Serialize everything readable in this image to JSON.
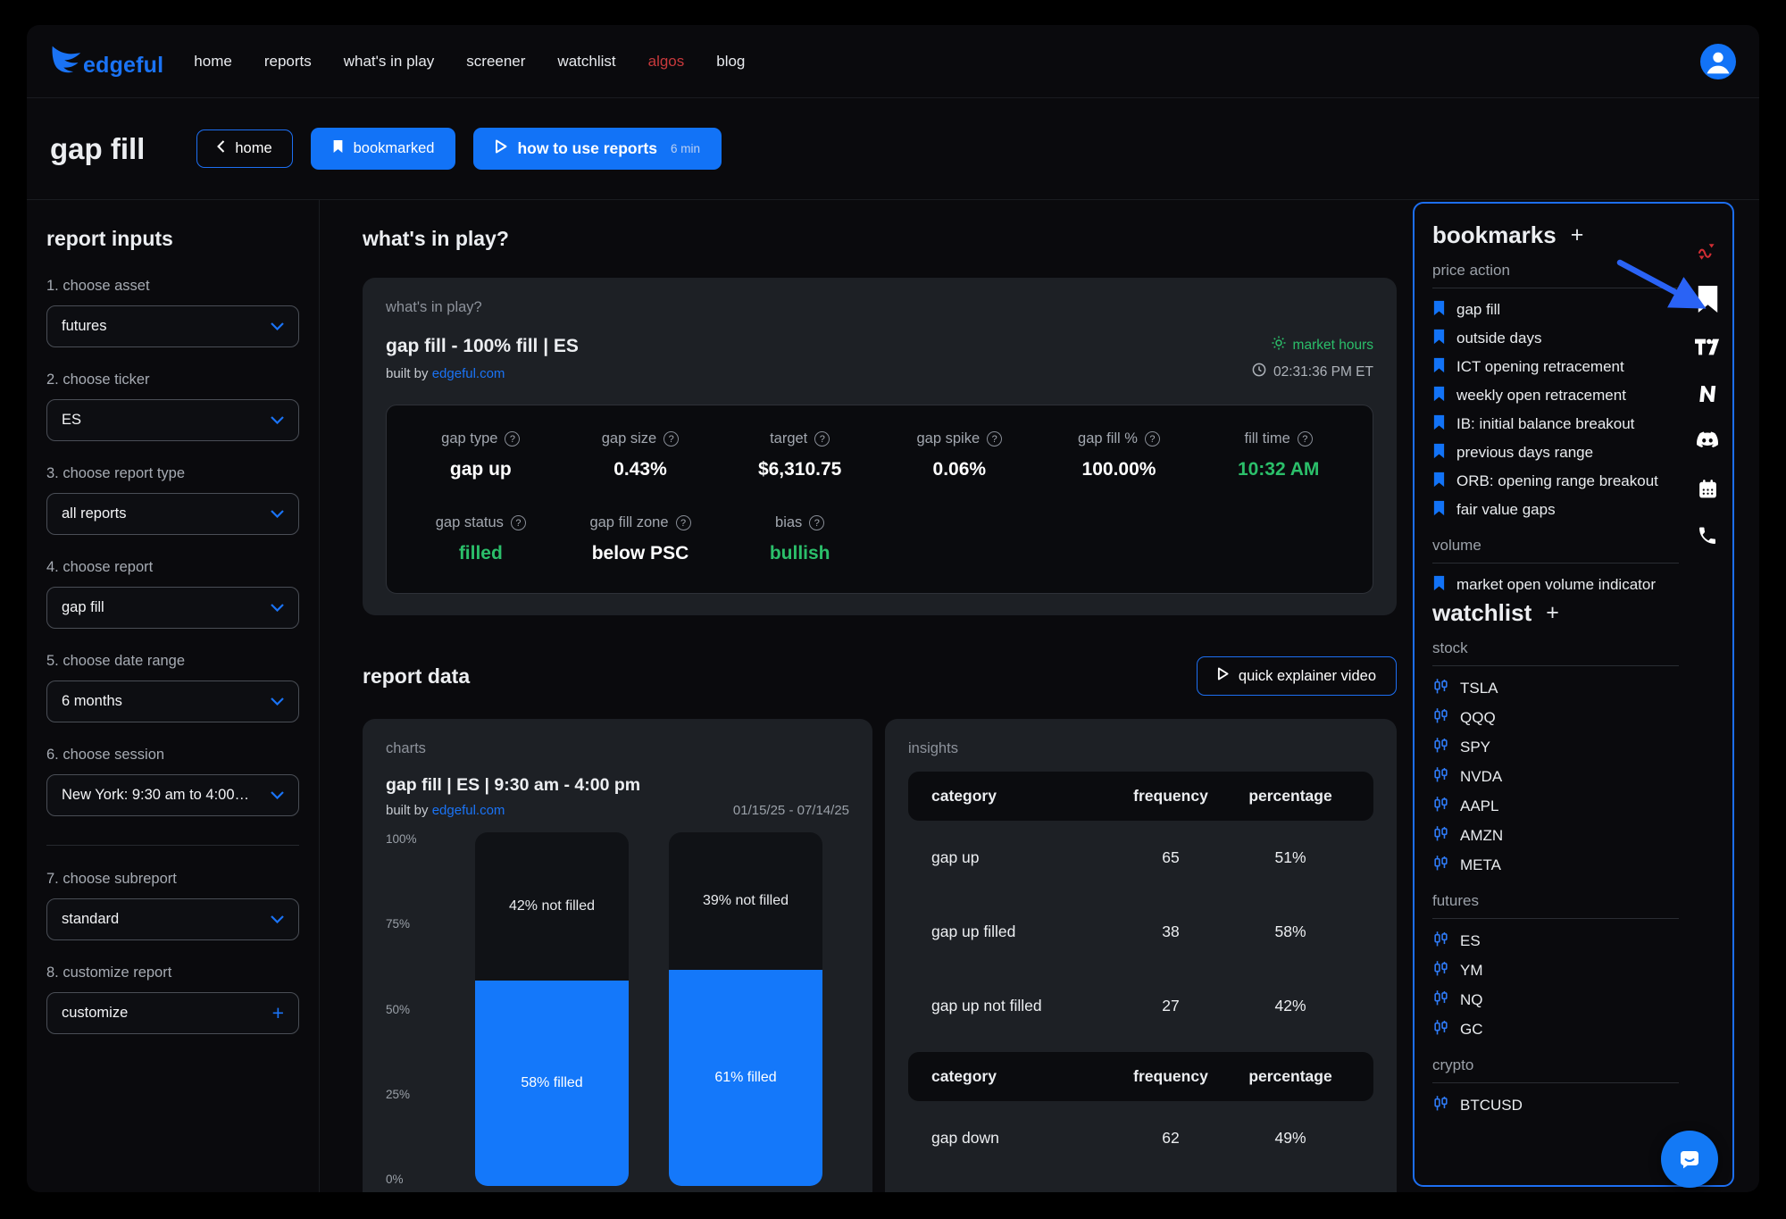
{
  "colors": {
    "accent_blue": "#1273f7",
    "panel_border_blue": "#1d6ff2",
    "positive_green": "#2bbf6a",
    "algos_red": "#c8393c",
    "bar_filled_blue": "#1478fa",
    "bar_not_filled": "#101216",
    "card_bg": "#1d2025",
    "page_bg": "#0a0a0d"
  },
  "icons": {
    "help": "?",
    "plus": "+"
  },
  "nav": {
    "brand": "edgeful",
    "items": [
      "home",
      "reports",
      "what's in play",
      "screener",
      "watchlist",
      "algos",
      "blog"
    ]
  },
  "header": {
    "title": "gap fill",
    "home_button": "home",
    "bookmarked_button": "bookmarked",
    "how_to_button": "how to use reports",
    "how_to_duration": "6 min"
  },
  "report_inputs": {
    "title": "report inputs",
    "fields": [
      {
        "label": "1. choose asset",
        "value": "futures"
      },
      {
        "label": "2. choose ticker",
        "value": "ES"
      },
      {
        "label": "3. choose report type",
        "value": "all reports"
      },
      {
        "label": "4. choose report",
        "value": "gap fill"
      },
      {
        "label": "5. choose date range",
        "value": "6 months"
      },
      {
        "label": "6. choose session",
        "value": "New York: 9:30 am to 4:00…"
      },
      {
        "label": "7. choose subreport",
        "value": "standard"
      },
      {
        "label": "8. customize report",
        "value": "customize"
      }
    ]
  },
  "whats_in_play": {
    "section_title": "what's in play?",
    "card_label": "what's in play?",
    "title": "gap fill - 100% fill | ES",
    "built_by_prefix": "built by",
    "built_by_link": "edgeful.com",
    "market_status": "market hours",
    "time": "02:31:36 PM ET",
    "stats": [
      {
        "label": "gap type",
        "value": "gap up"
      },
      {
        "label": "gap size",
        "value": "0.43%"
      },
      {
        "label": "target",
        "value": "$6,310.75"
      },
      {
        "label": "gap spike",
        "value": "0.06%"
      },
      {
        "label": "gap fill %",
        "value": "100.00%"
      },
      {
        "label": "fill time",
        "value": "10:32 AM"
      },
      {
        "label": "gap status",
        "value": "filled"
      },
      {
        "label": "gap fill zone",
        "value": "below PSC"
      },
      {
        "label": "bias",
        "value": "bullish"
      }
    ]
  },
  "report_data_section": {
    "title": "report data",
    "explainer_button": "quick explainer video"
  },
  "chart_data": {
    "type": "bar",
    "stacked": true,
    "card_label": "charts",
    "title": "gap fill | ES | 9:30 am - 4:00 pm",
    "built_by_prefix": "built by",
    "built_by_link": "edgeful.com",
    "date_range": "01/15/25 - 07/14/25",
    "ylabel": "",
    "ylim": [
      0,
      100
    ],
    "y_ticks": [
      "100%",
      "75%",
      "50%",
      "25%",
      "0%"
    ],
    "legend_position": "none",
    "grid": false,
    "bars": [
      {
        "not_filled_pct": 42,
        "filled_pct": 58,
        "not_filled_label": "42% not filled",
        "filled_label": "58% filled"
      },
      {
        "not_filled_pct": 39,
        "filled_pct": 61,
        "not_filled_label": "39% not filled",
        "filled_label": "61% filled"
      }
    ]
  },
  "insights": {
    "card_label": "insights",
    "columns": [
      "category",
      "frequency",
      "percentage"
    ],
    "sections": [
      {
        "rows": [
          [
            "gap up",
            "65",
            "51%"
          ],
          [
            "gap up filled",
            "38",
            "58%"
          ],
          [
            "gap up not filled",
            "27",
            "42%"
          ]
        ]
      },
      {
        "rows": [
          [
            "gap down",
            "62",
            "49%"
          ]
        ]
      }
    ]
  },
  "bookmarks_panel": {
    "title": "bookmarks",
    "add_label": "+",
    "groups": [
      {
        "name": "price action",
        "items": [
          "gap fill",
          "outside days",
          "ICT opening retracement",
          "weekly open retracement",
          "IB: initial balance breakout",
          "previous days range",
          "ORB: opening range breakout",
          "fair value gaps"
        ]
      },
      {
        "name": "volume",
        "items": [
          "market open volume indicator"
        ]
      }
    ]
  },
  "watchlist_panel": {
    "title": "watchlist",
    "add_label": "+",
    "groups": [
      {
        "name": "stock",
        "items": [
          "TSLA",
          "QQQ",
          "SPY",
          "NVDA",
          "AAPL",
          "AMZN",
          "META"
        ]
      },
      {
        "name": "futures",
        "items": [
          "ES",
          "YM",
          "NQ",
          "GC"
        ]
      },
      {
        "name": "crypto",
        "items": [
          "BTCUSD"
        ]
      }
    ]
  }
}
